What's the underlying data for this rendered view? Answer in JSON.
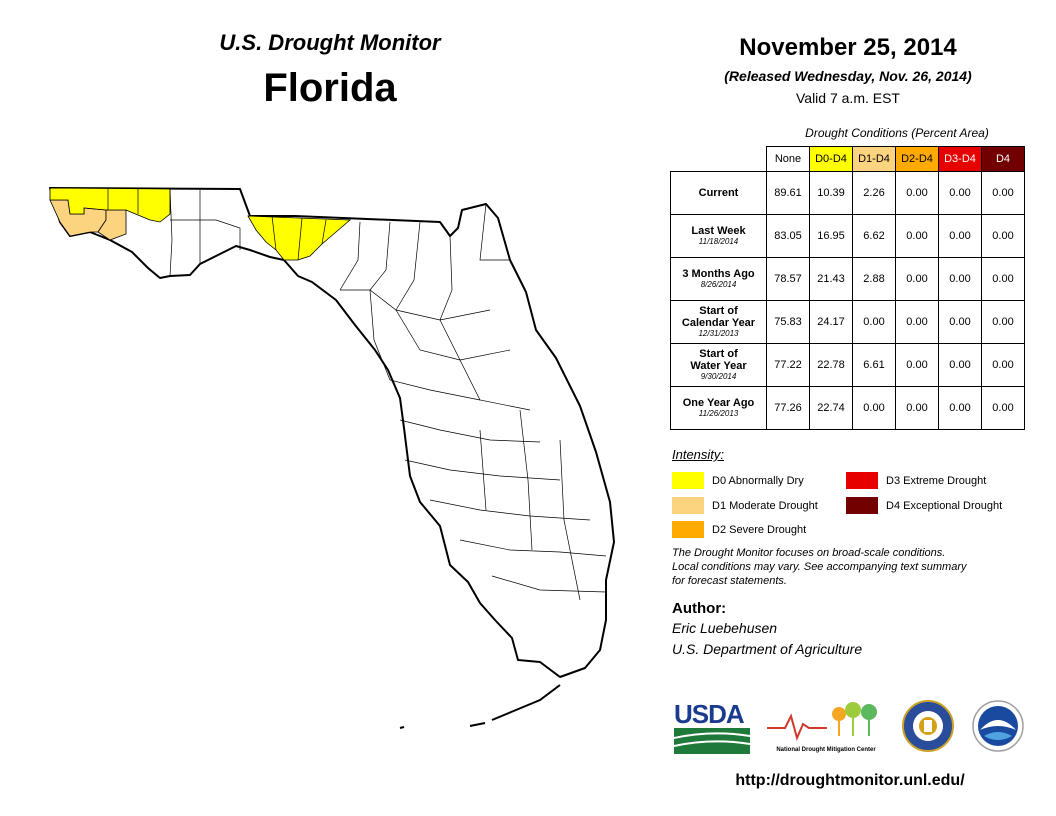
{
  "header": {
    "subtitle": "U.S. Drought Monitor",
    "state": "Florida",
    "date": "November 25, 2014",
    "released": "(Released Wednesday, Nov. 26, 2014)",
    "valid": "Valid 7 a.m. EST"
  },
  "table": {
    "caption": "Drought Conditions (Percent Area)",
    "columns": [
      "None",
      "D0-D4",
      "D1-D4",
      "D2-D4",
      "D3-D4",
      "D4"
    ],
    "column_colors": [
      "#ffffff",
      "#ffff00",
      "#fcd37f",
      "#ffaa00",
      "#e60000",
      "#730000"
    ],
    "rows": [
      {
        "label": "Current",
        "label2": "",
        "date": "",
        "values": [
          "89.61",
          "10.39",
          "2.26",
          "0.00",
          "0.00",
          "0.00"
        ]
      },
      {
        "label": "Last Week",
        "label2": "",
        "date": "11/18/2014",
        "values": [
          "83.05",
          "16.95",
          "6.62",
          "0.00",
          "0.00",
          "0.00"
        ]
      },
      {
        "label": "3 Months Ago",
        "label2": "",
        "date": "8/26/2014",
        "values": [
          "78.57",
          "21.43",
          "2.88",
          "0.00",
          "0.00",
          "0.00"
        ]
      },
      {
        "label": "Start of",
        "label2": "Calendar Year",
        "date": "12/31/2013",
        "values": [
          "75.83",
          "24.17",
          "0.00",
          "0.00",
          "0.00",
          "0.00"
        ]
      },
      {
        "label": "Start of",
        "label2": "Water Year",
        "date": "9/30/2014",
        "values": [
          "77.22",
          "22.78",
          "6.61",
          "0.00",
          "0.00",
          "0.00"
        ]
      },
      {
        "label": "One Year Ago",
        "label2": "",
        "date": "11/26/2013",
        "values": [
          "77.26",
          "22.74",
          "0.00",
          "0.00",
          "0.00",
          "0.00"
        ]
      }
    ]
  },
  "legend": {
    "title": "Intensity:",
    "items": [
      {
        "label": "D0 Abnormally Dry",
        "color": "#ffff00"
      },
      {
        "label": "D1 Moderate Drought",
        "color": "#fcd37f"
      },
      {
        "label": "D2 Severe Drought",
        "color": "#ffaa00"
      },
      {
        "label": "D3 Extreme Drought",
        "color": "#e60000"
      },
      {
        "label": "D4 Exceptional Drought",
        "color": "#730000"
      }
    ]
  },
  "disclaimer": {
    "line1": "The Drought Monitor focuses on broad-scale conditions.",
    "line2": "Local conditions may vary. See accompanying text summary",
    "line3": "for forecast statements."
  },
  "author": {
    "label": "Author:",
    "name": "Eric Luebehusen",
    "org": "U.S. Department of Agriculture"
  },
  "logos": {
    "usda": "USDA",
    "ndmc": "National Drought Mitigation Center"
  },
  "url": "http://droughtmonitor.unl.edu/"
}
